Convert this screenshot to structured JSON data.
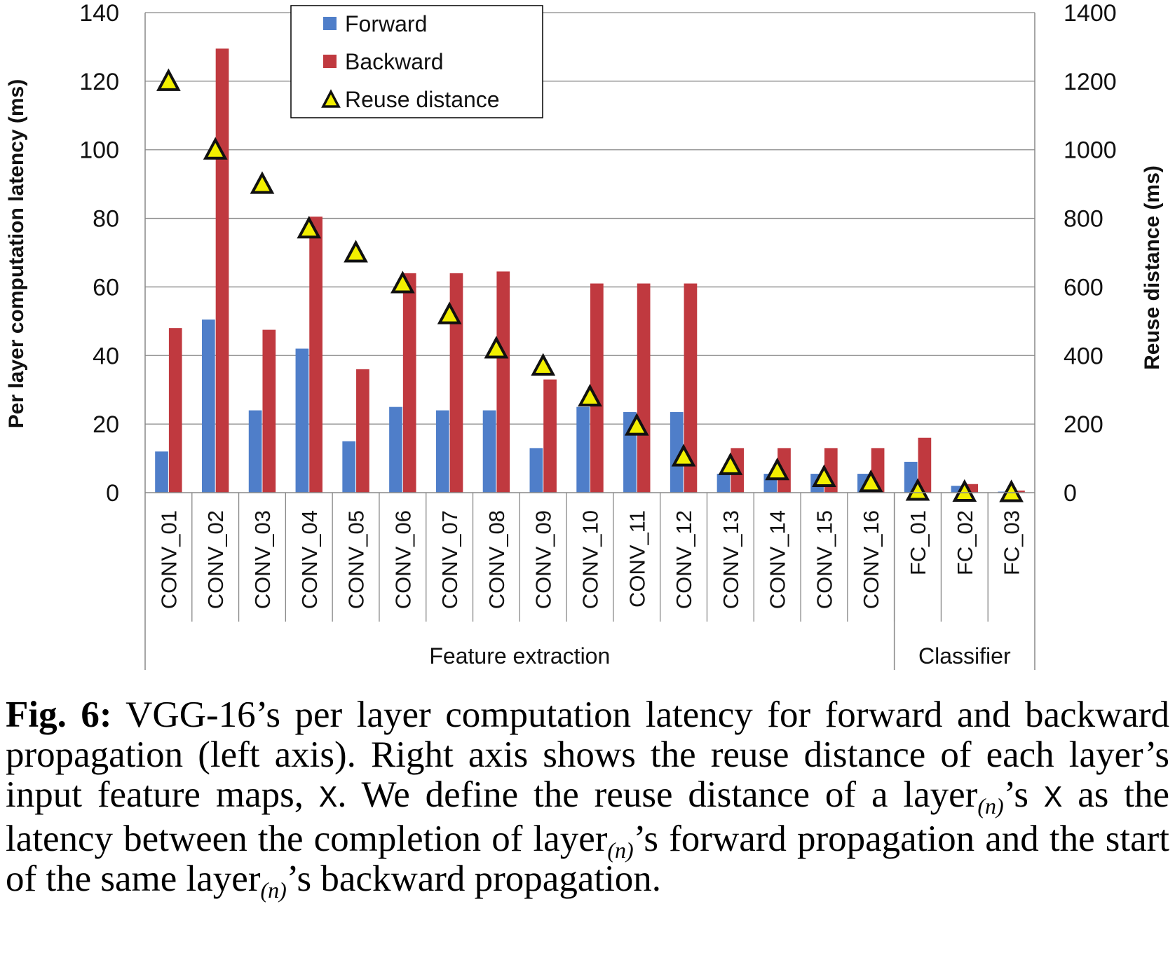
{
  "chart_data": {
    "type": "bar",
    "categories": [
      "CONV_01",
      "CONV_02",
      "CONV_03",
      "CONV_04",
      "CONV_05",
      "CONV_06",
      "CONV_07",
      "CONV_08",
      "CONV_09",
      "CONV_10",
      "CONV_11",
      "CONV_12",
      "CONV_13",
      "CONV_14",
      "CONV_15",
      "CONV_16",
      "FC_01",
      "FC_02",
      "FC_03"
    ],
    "series": [
      {
        "name": "Forward",
        "axis": "left",
        "color": "#4f7ec9",
        "values": [
          12,
          50.5,
          24,
          42,
          15,
          25,
          24,
          24,
          13,
          25,
          23.5,
          23.5,
          5.5,
          5.5,
          5.5,
          5.5,
          9,
          2,
          0.3
        ]
      },
      {
        "name": "Backward",
        "axis": "left",
        "color": "#c0393f",
        "values": [
          48,
          129.5,
          47.5,
          80.5,
          36,
          64,
          64,
          64.5,
          33,
          61,
          61,
          61,
          13,
          13,
          13,
          13,
          16,
          2.5,
          0.6
        ]
      },
      {
        "name": "Reuse distance",
        "axis": "right",
        "color": "#f2ef00",
        "marker": "triangle",
        "values": [
          1200,
          1000,
          900,
          770,
          700,
          610,
          520,
          420,
          370,
          280,
          195,
          105,
          80,
          65,
          45,
          30,
          5,
          2,
          1
        ]
      }
    ],
    "groups": [
      {
        "label": "Feature extraction",
        "span": 16
      },
      {
        "label": "Classifier",
        "span": 3
      }
    ],
    "ylabel": "Per layer computation latency (ms)",
    "ylim": [
      0,
      140
    ],
    "yticks": [
      "0",
      "20",
      "40",
      "60",
      "80",
      "100",
      "120",
      "140"
    ],
    "y2label": "Reuse distance (ms)",
    "y2lim": [
      0,
      1400
    ],
    "y2ticks": [
      "0",
      "200",
      "400",
      "600",
      "800",
      "1000",
      "1200",
      "1400"
    ],
    "grid": true,
    "legend_position": "top-center"
  },
  "caption": {
    "fig_label": "Fig. 6:",
    "part1": " VGG-16’s per layer computation latency for forward and backward propagation (left axis). Right axis shows the reuse distance of each layer’s input feature maps, ",
    "x1": "X",
    "part2": ". We define the reuse distance of a layer",
    "sub1": "(n)",
    "part3": "’s ",
    "x2": "X",
    "part4": " as the latency between the completion of layer",
    "sub2": "(n)",
    "part5": "’s forward propagation and the start of the same layer",
    "sub3": "(n)",
    "part6": "’s backward propagation."
  }
}
